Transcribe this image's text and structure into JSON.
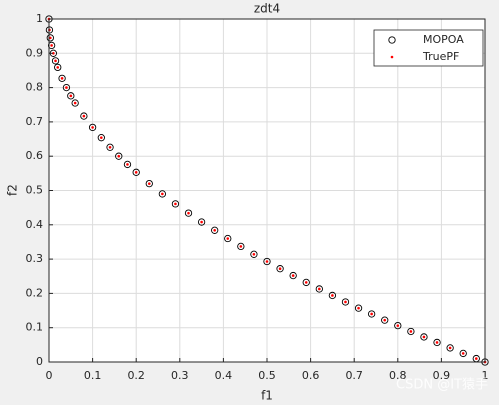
{
  "chart_data": {
    "type": "scatter",
    "title": "zdt4",
    "x_label": "f1",
    "y_label": "f2",
    "xlim": [
      0,
      1
    ],
    "ylim": [
      0,
      1
    ],
    "xticks": [
      0,
      0.1,
      0.2,
      0.3,
      0.4,
      0.5,
      0.6,
      0.7,
      0.8,
      0.9,
      1
    ],
    "yticks": [
      0,
      0.1,
      0.2,
      0.3,
      0.4,
      0.5,
      0.6,
      0.7,
      0.8,
      0.9,
      1
    ],
    "grid": true,
    "legend_position": "northeast",
    "series": [
      {
        "name": "MOPOA",
        "color": "#000000",
        "marker": "circle",
        "x": [
          0,
          0.001,
          0.003,
          0.006,
          0.01,
          0.015,
          0.02,
          0.03,
          0.04,
          0.05,
          0.06,
          0.08,
          0.1,
          0.12,
          0.14,
          0.16,
          0.18,
          0.2,
          0.23,
          0.26,
          0.29,
          0.32,
          0.35,
          0.38,
          0.41,
          0.44,
          0.47,
          0.5,
          0.53,
          0.56,
          0.59,
          0.62,
          0.65,
          0.68,
          0.71,
          0.74,
          0.77,
          0.8,
          0.83,
          0.86,
          0.89,
          0.92,
          0.95,
          0.98,
          1
        ],
        "values": [
          1,
          0.968,
          0.945,
          0.923,
          0.9,
          0.878,
          0.859,
          0.827,
          0.8,
          0.776,
          0.755,
          0.717,
          0.684,
          0.654,
          0.626,
          0.6,
          0.576,
          0.553,
          0.52,
          0.49,
          0.461,
          0.434,
          0.408,
          0.384,
          0.36,
          0.337,
          0.314,
          0.293,
          0.272,
          0.252,
          0.232,
          0.213,
          0.194,
          0.175,
          0.157,
          0.14,
          0.122,
          0.106,
          0.089,
          0.073,
          0.057,
          0.041,
          0.025,
          0.01,
          0
        ]
      },
      {
        "name": "TruePF",
        "color": "#ff0000",
        "marker": "dot",
        "x": [
          0,
          0.001,
          0.003,
          0.006,
          0.01,
          0.015,
          0.02,
          0.03,
          0.04,
          0.05,
          0.06,
          0.08,
          0.1,
          0.12,
          0.14,
          0.16,
          0.18,
          0.2,
          0.23,
          0.26,
          0.29,
          0.32,
          0.35,
          0.38,
          0.41,
          0.44,
          0.47,
          0.5,
          0.53,
          0.56,
          0.59,
          0.62,
          0.65,
          0.68,
          0.71,
          0.74,
          0.77,
          0.8,
          0.83,
          0.86,
          0.89,
          0.92,
          0.95,
          0.98,
          1
        ],
        "values": [
          1,
          0.968,
          0.945,
          0.923,
          0.9,
          0.878,
          0.859,
          0.827,
          0.8,
          0.776,
          0.755,
          0.717,
          0.684,
          0.654,
          0.626,
          0.6,
          0.576,
          0.553,
          0.52,
          0.49,
          0.461,
          0.434,
          0.408,
          0.384,
          0.36,
          0.337,
          0.314,
          0.293,
          0.272,
          0.252,
          0.232,
          0.213,
          0.194,
          0.175,
          0.157,
          0.14,
          0.122,
          0.106,
          0.089,
          0.073,
          0.057,
          0.041,
          0.025,
          0.01,
          0
        ]
      }
    ]
  },
  "watermark": "CSDN @IT猿手"
}
